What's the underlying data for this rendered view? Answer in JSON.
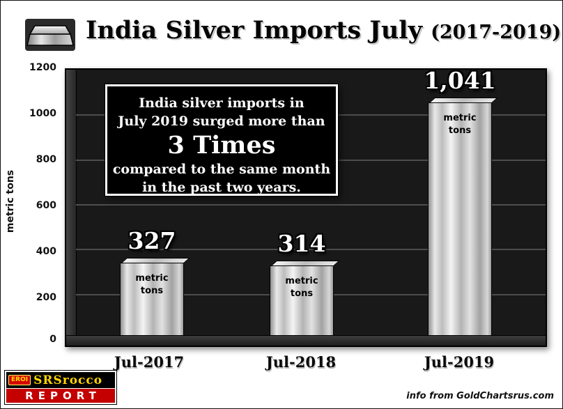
{
  "header": {
    "title": "India Silver Imports July",
    "title_suffix": "(2017-2019)",
    "icon": "silver-ingot-icon"
  },
  "chart_data": {
    "type": "bar",
    "title": "India Silver Imports July (2017-2019)",
    "categories": [
      "Jul-2017",
      "Jul-2018",
      "Jul-2019"
    ],
    "values": [
      327,
      314,
      1041
    ],
    "value_labels": [
      "327",
      "314",
      "1,041"
    ],
    "bar_unit_line1": "metric",
    "bar_unit_line2": "tons",
    "xlabel": "",
    "ylabel": "metric tons",
    "ylim": [
      0,
      1200
    ],
    "yticks": [
      0,
      200,
      400,
      600,
      800,
      1000,
      1200
    ],
    "ytick_labels_desc": [
      "1200",
      "1000",
      "800",
      "600",
      "400",
      "200",
      "0"
    ],
    "grid": true,
    "legend": "none",
    "plot_background": "#191919",
    "bar_style": "metallic-silver",
    "annotation": {
      "line1": "India silver imports in",
      "line2": "July 2019 surged more than",
      "highlight": "3 Times",
      "line3": "compared to the same month",
      "line4": "in the past two years."
    }
  },
  "footer": {
    "logo_eroi": "EROI",
    "logo_name": "SRSrocco",
    "logo_report": "REPORT",
    "credit": "info from GoldChartsrus.com"
  },
  "colors": {
    "plot_bg": "#191919",
    "gridline": "#4d4d4d",
    "annotation_bg": "#000000",
    "annotation_border": "#ffffff",
    "logo_red": "#c40000",
    "logo_yellow": "#ffd400",
    "value_text": "#ffffff"
  }
}
